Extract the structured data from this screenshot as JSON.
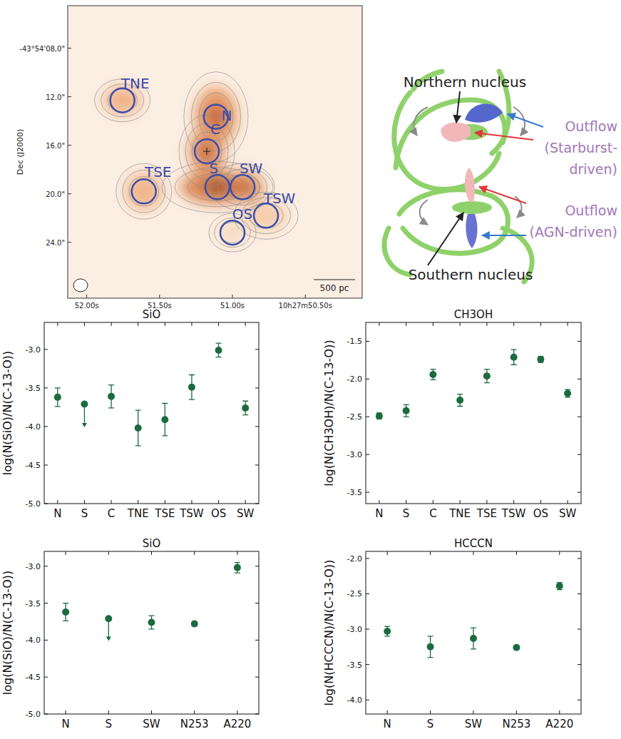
{
  "map": {
    "y_label": "Dec (J2000)",
    "xlim": [
      52.13,
      50.11
    ],
    "ylim": [
      4.5,
      28.6
    ],
    "xticks": [
      {
        "value": 52.0,
        "label": "52.00s"
      },
      {
        "value": 51.5,
        "label": "51.50s"
      },
      {
        "value": 51.0,
        "label": "51.00s"
      },
      {
        "value": 50.5,
        "label": "10h27m50.50s"
      }
    ],
    "yticks": [
      {
        "value": 8,
        "label": "-43°54'08,0\""
      },
      {
        "value": 12,
        "label": "12.0\""
      },
      {
        "value": 16,
        "label": "16.0\""
      },
      {
        "value": 20,
        "label": "20.0\""
      },
      {
        "value": 24,
        "label": "24.0\""
      }
    ],
    "regions": [
      {
        "label": "TNE",
        "ra": 51.755,
        "dec": 12.3
      },
      {
        "label": "N",
        "ra": 51.113,
        "dec": 13.65
      },
      {
        "label": "C",
        "ra": 51.176,
        "dec": 16.5
      },
      {
        "label": "S",
        "ra": 51.103,
        "dec": 19.45
      },
      {
        "label": "SW",
        "ra": 50.931,
        "dec": 19.45
      },
      {
        "label": "TSE",
        "ra": 51.608,
        "dec": 19.8
      },
      {
        "label": "TSW",
        "ra": 50.77,
        "dec": 21.8
      },
      {
        "label": "OS",
        "ra": 51.0,
        "dec": 23.2
      }
    ],
    "scale_bar": "500 pc"
  },
  "diagram": {
    "northern_nucleus": "Northern nucleus",
    "southern_nucleus": "Southern nucleus",
    "outflow_starburst": [
      "Outflow",
      "(Starburst-",
      "driven)"
    ],
    "outflow_agn": [
      "Outflow",
      "(AGN-driven)"
    ]
  },
  "chart_data": [
    {
      "type": "scatter",
      "title": "SiO",
      "y_label": "log(N(SiO)/N(C-13-O))",
      "categories": [
        "N",
        "S",
        "C",
        "TNE",
        "TSE",
        "TSW",
        "OS",
        "SW"
      ],
      "values": [
        -3.62,
        -3.71,
        -3.61,
        -4.02,
        -3.91,
        -3.49,
        -3.01,
        -3.76
      ],
      "errors": [
        0.12,
        null,
        0.15,
        0.23,
        0.21,
        0.16,
        0.09,
        0.09
      ],
      "upper_limits": [
        false,
        true,
        false,
        false,
        false,
        false,
        false,
        false
      ],
      "color": "#1b6b3f",
      "marker": "circle",
      "ylim": [
        -5.0,
        -2.65
      ],
      "yticks": [
        {
          "value": -5,
          "label": "-5.0"
        },
        -4.5,
        {
          "value": -4,
          "label": "-4.0"
        },
        -3.5,
        {
          "value": -3,
          "label": "-3.0"
        }
      ]
    },
    {
      "type": "scatter",
      "title": "CH3OH",
      "y_label": "log(N(CH3OH)/N(C-13-O))",
      "categories": [
        "N",
        "S",
        "C",
        "TNE",
        "TSE",
        "TSW",
        "OS",
        "SW"
      ],
      "values": [
        -2.49,
        -2.42,
        -1.94,
        -2.28,
        -1.96,
        -1.71,
        -1.74,
        -2.19
      ],
      "errors": [
        0.04,
        0.08,
        0.07,
        0.08,
        0.09,
        0.1,
        0.04,
        0.05
      ],
      "upper_limits": [
        false,
        false,
        false,
        false,
        false,
        false,
        false,
        false
      ],
      "color": "#1b6b3f",
      "marker": "circle",
      "ylim": [
        -3.65,
        -1.25
      ],
      "yticks": [
        -3.5,
        {
          "value": -3,
          "label": "-3.0"
        },
        -2.5,
        {
          "value": -2,
          "label": "-2.0"
        },
        -1.5
      ]
    },
    {
      "type": "scatter",
      "title": "SiO",
      "y_label": "log(N(SiO)/N(C-13-O))",
      "categories": [
        "N",
        "S",
        "SW",
        "N253",
        "A220"
      ],
      "values": [
        -3.62,
        -3.71,
        -3.76,
        -3.78,
        -3.02
      ],
      "errors": [
        0.12,
        null,
        0.09,
        0.03,
        0.07
      ],
      "upper_limits": [
        false,
        true,
        false,
        false,
        false
      ],
      "color": "#1b6b3f",
      "marker": "circle",
      "ylim": [
        -5.0,
        -2.8
      ],
      "yticks": [
        {
          "value": -5,
          "label": "-5.0"
        },
        -4.5,
        {
          "value": -4,
          "label": "-4.0"
        },
        -3.5,
        {
          "value": -3,
          "label": "-3.0"
        }
      ]
    },
    {
      "type": "scatter",
      "title": "HCCCN",
      "y_label": "log(N(HCCCN)/N(C-13-O))",
      "categories": [
        "N",
        "S",
        "SW",
        "N253",
        "A220"
      ],
      "values": [
        -3.03,
        -3.25,
        -3.13,
        -3.26,
        -2.39
      ],
      "errors": [
        0.07,
        0.15,
        0.15,
        0.01,
        0.05
      ],
      "upper_limits": [
        false,
        false,
        false,
        false,
        false
      ],
      "color": "#1b6b3f",
      "marker": "circle",
      "ylim": [
        -4.2,
        -1.9
      ],
      "yticks": [
        {
          "value": -4,
          "label": "-4.0"
        },
        -3.5,
        {
          "value": -3,
          "label": "-3.0"
        },
        -2.5,
        {
          "value": -2,
          "label": "-2.0"
        }
      ]
    }
  ]
}
